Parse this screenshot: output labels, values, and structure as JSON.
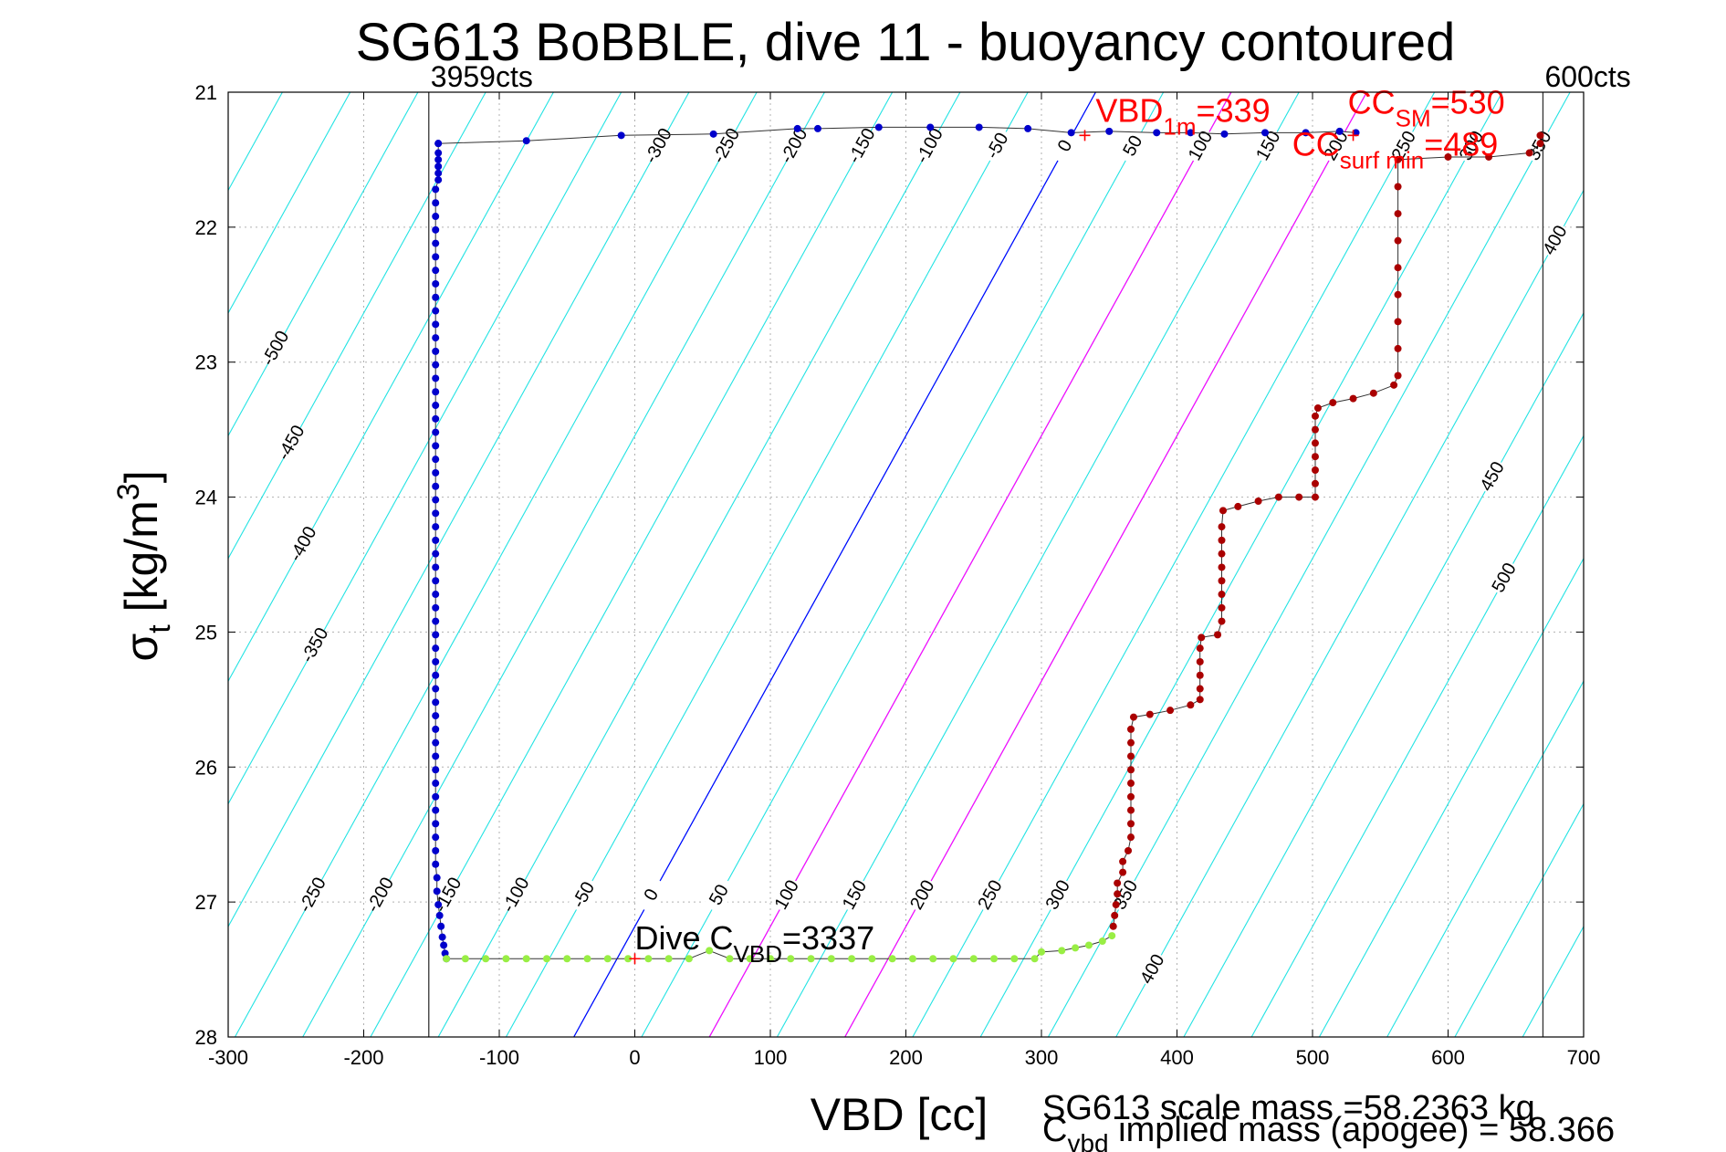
{
  "chart_data": {
    "type": "scatter",
    "title": "SG613 BoBBLE, dive 11 - buoyancy contoured",
    "xlabel": "VBD [cc]",
    "ylabel": {
      "base": "σ",
      "sub": "t",
      "rest": " [kg/m",
      "sup": "3",
      "close": "]"
    },
    "xlim": [
      -300,
      700
    ],
    "ylim": [
      21,
      28
    ],
    "y_reversed": true,
    "grid": true,
    "xticks": [
      -300,
      -200,
      -100,
      0,
      100,
      200,
      300,
      400,
      500,
      600,
      700
    ],
    "yticks": [
      21,
      22,
      23,
      24,
      25,
      26,
      27,
      28
    ],
    "contour_levels_cyan": [
      -500,
      -450,
      -400,
      -350,
      -300,
      -250,
      -200,
      -150,
      -100,
      -50,
      0,
      50,
      100,
      150,
      200,
      250,
      300,
      350,
      400,
      450,
      500
    ],
    "contour_intercepts": {
      "at_sigma_28": -45,
      "at_sigma_21": 340
    },
    "contour_spacing_cc": 50,
    "special_lines": [
      {
        "name": "VBD_1m",
        "x28": -45,
        "x21": 340,
        "color": "#0000ff"
      },
      {
        "name": "CC_surfmin",
        "x28": 55,
        "x21": 440,
        "color": "#ff00ff"
      },
      {
        "name": "CC_SM",
        "x28": 155,
        "x21": 540,
        "color": "#ff00ff"
      }
    ],
    "contour_label_rows": [
      {
        "sigma": 21.4,
        "levels": [
          -300,
          -250,
          -200,
          -150,
          -100,
          -50,
          0,
          50,
          100,
          150,
          200,
          250,
          300,
          350
        ]
      },
      {
        "sigma": 26.95,
        "levels": [
          -250,
          -200,
          -150,
          -100,
          -50,
          0,
          50,
          100,
          150,
          200,
          250,
          300,
          350
        ]
      }
    ],
    "contour_label_extra": [
      {
        "level": -500,
        "sigma": 22.9
      },
      {
        "level": -450,
        "sigma": 23.6
      },
      {
        "level": -400,
        "sigma": 24.35
      },
      {
        "level": -350,
        "sigma": 25.1
      },
      {
        "level": 400,
        "sigma": 22.1
      },
      {
        "level": 400,
        "sigma": 27.5
      },
      {
        "level": 450,
        "sigma": 23.85
      },
      {
        "level": 500,
        "sigma": 24.6
      }
    ],
    "vertical_lines": [
      {
        "x": -152,
        "label": "3959cts"
      },
      {
        "x": 670,
        "label": "600cts"
      }
    ],
    "series": [
      {
        "name": "dive",
        "color": "#0000cc",
        "points": [
          [
            -145,
            21.38
          ],
          [
            -145,
            21.45
          ],
          [
            -145,
            21.5
          ],
          [
            -145,
            21.55
          ],
          [
            -145,
            21.6
          ],
          [
            -145,
            21.65
          ],
          [
            -147,
            21.72
          ],
          [
            -147,
            21.82
          ],
          [
            -147,
            21.92
          ],
          [
            -147,
            22.02
          ],
          [
            -147,
            22.12
          ],
          [
            -147,
            22.22
          ],
          [
            -147,
            22.32
          ],
          [
            -147,
            22.42
          ],
          [
            -147,
            22.52
          ],
          [
            -147,
            22.62
          ],
          [
            -147,
            22.72
          ],
          [
            -147,
            22.82
          ],
          [
            -147,
            22.92
          ],
          [
            -147,
            23.02
          ],
          [
            -147,
            23.12
          ],
          [
            -147,
            23.22
          ],
          [
            -147,
            23.32
          ],
          [
            -147,
            23.42
          ],
          [
            -147,
            23.52
          ],
          [
            -147,
            23.62
          ],
          [
            -147,
            23.72
          ],
          [
            -147,
            23.82
          ],
          [
            -147,
            23.92
          ],
          [
            -147,
            24.02
          ],
          [
            -147,
            24.12
          ],
          [
            -147,
            24.22
          ],
          [
            -147,
            24.32
          ],
          [
            -147,
            24.42
          ],
          [
            -147,
            24.52
          ],
          [
            -147,
            24.62
          ],
          [
            -147,
            24.72
          ],
          [
            -147,
            24.82
          ],
          [
            -147,
            24.92
          ],
          [
            -147,
            25.02
          ],
          [
            -147,
            25.12
          ],
          [
            -147,
            25.22
          ],
          [
            -147,
            25.32
          ],
          [
            -147,
            25.42
          ],
          [
            -147,
            25.52
          ],
          [
            -147,
            25.62
          ],
          [
            -147,
            25.72
          ],
          [
            -147,
            25.82
          ],
          [
            -147,
            25.92
          ],
          [
            -147,
            26.02
          ],
          [
            -147,
            26.12
          ],
          [
            -147,
            26.22
          ],
          [
            -147,
            26.32
          ],
          [
            -147,
            26.42
          ],
          [
            -147,
            26.52
          ],
          [
            -147,
            26.62
          ],
          [
            -147,
            26.72
          ],
          [
            -146,
            26.82
          ],
          [
            -146,
            26.92
          ],
          [
            -145,
            27.02
          ],
          [
            -144,
            27.1
          ],
          [
            -143,
            27.18
          ],
          [
            -142,
            27.26
          ],
          [
            -141,
            27.32
          ],
          [
            -140,
            27.38
          ],
          [
            -139,
            27.42
          ]
        ]
      },
      {
        "name": "bottom",
        "color": "#99ee44",
        "points": [
          [
            -139,
            27.42
          ],
          [
            -125,
            27.42
          ],
          [
            -110,
            27.42
          ],
          [
            -95,
            27.42
          ],
          [
            -80,
            27.42
          ],
          [
            -65,
            27.42
          ],
          [
            -50,
            27.42
          ],
          [
            -35,
            27.42
          ],
          [
            -20,
            27.42
          ],
          [
            -5,
            27.42
          ],
          [
            10,
            27.42
          ],
          [
            25,
            27.42
          ],
          [
            40,
            27.42
          ],
          [
            55,
            27.36
          ],
          [
            70,
            27.42
          ],
          [
            85,
            27.42
          ],
          [
            100,
            27.42
          ],
          [
            115,
            27.42
          ],
          [
            130,
            27.42
          ],
          [
            145,
            27.42
          ],
          [
            160,
            27.42
          ],
          [
            175,
            27.42
          ],
          [
            190,
            27.42
          ],
          [
            205,
            27.42
          ],
          [
            220,
            27.42
          ],
          [
            235,
            27.42
          ],
          [
            250,
            27.42
          ],
          [
            265,
            27.42
          ],
          [
            280,
            27.42
          ],
          [
            295,
            27.42
          ],
          [
            300,
            27.37
          ],
          [
            315,
            27.36
          ],
          [
            325,
            27.34
          ],
          [
            335,
            27.32
          ],
          [
            345,
            27.29
          ],
          [
            352,
            27.25
          ]
        ]
      },
      {
        "name": "climb",
        "color": "#aa0000",
        "points": [
          [
            353,
            27.18
          ],
          [
            354,
            27.1
          ],
          [
            355,
            27.02
          ],
          [
            356,
            26.94
          ],
          [
            356,
            26.86
          ],
          [
            360,
            26.78
          ],
          [
            360,
            26.7
          ],
          [
            364,
            26.62
          ],
          [
            366,
            26.52
          ],
          [
            366,
            26.42
          ],
          [
            366,
            26.32
          ],
          [
            366,
            26.22
          ],
          [
            366,
            26.12
          ],
          [
            366,
            26.02
          ],
          [
            366,
            25.92
          ],
          [
            366,
            25.82
          ],
          [
            366,
            25.72
          ],
          [
            368,
            25.63
          ],
          [
            380,
            25.61
          ],
          [
            395,
            25.58
          ],
          [
            410,
            25.54
          ],
          [
            417,
            25.5
          ],
          [
            417,
            25.42
          ],
          [
            417,
            25.32
          ],
          [
            417,
            25.22
          ],
          [
            417,
            25.12
          ],
          [
            418,
            25.04
          ],
          [
            430,
            25.02
          ],
          [
            433,
            24.92
          ],
          [
            433,
            24.82
          ],
          [
            433,
            24.72
          ],
          [
            433,
            24.62
          ],
          [
            433,
            24.52
          ],
          [
            433,
            24.42
          ],
          [
            433,
            24.32
          ],
          [
            433,
            24.22
          ],
          [
            434,
            24.1
          ],
          [
            445,
            24.07
          ],
          [
            460,
            24.03
          ],
          [
            475,
            24.0
          ],
          [
            490,
            24.0
          ],
          [
            502,
            24.0
          ],
          [
            502,
            23.9
          ],
          [
            502,
            23.8
          ],
          [
            502,
            23.7
          ],
          [
            502,
            23.6
          ],
          [
            502,
            23.5
          ],
          [
            502,
            23.4
          ],
          [
            504,
            23.34
          ],
          [
            515,
            23.3
          ],
          [
            530,
            23.27
          ],
          [
            545,
            23.23
          ],
          [
            560,
            23.17
          ],
          [
            563,
            23.1
          ],
          [
            563,
            22.9
          ],
          [
            563,
            22.7
          ],
          [
            563,
            22.5
          ],
          [
            563,
            22.3
          ],
          [
            563,
            22.1
          ],
          [
            563,
            21.9
          ],
          [
            563,
            21.7
          ],
          [
            563,
            21.5
          ],
          [
            600,
            21.48
          ],
          [
            630,
            21.48
          ],
          [
            660,
            21.45
          ],
          [
            668,
            21.38
          ],
          [
            668,
            21.32
          ]
        ]
      },
      {
        "name": "surface",
        "color": "#0000cc",
        "points": [
          [
            -145,
            21.38
          ],
          [
            -80,
            21.36
          ],
          [
            -10,
            21.32
          ],
          [
            58,
            21.31
          ],
          [
            120,
            21.27
          ],
          [
            135,
            21.27
          ],
          [
            180,
            21.26
          ],
          [
            218,
            21.26
          ],
          [
            254,
            21.26
          ],
          [
            290,
            21.27
          ],
          [
            322,
            21.3
          ],
          [
            350,
            21.29
          ],
          [
            385,
            21.3
          ],
          [
            410,
            21.3
          ],
          [
            435,
            21.31
          ],
          [
            465,
            21.3
          ],
          [
            495,
            21.3
          ],
          [
            520,
            21.29
          ],
          [
            532,
            21.3
          ]
        ]
      }
    ],
    "annotations": [
      {
        "parts": [
          {
            "t": "VBD"
          },
          {
            "t": "1m",
            "sub": true
          },
          {
            "t": "=339"
          }
        ],
        "x": 340,
        "sigma": 21.22,
        "color": "#ff0000"
      },
      {
        "parts": [
          {
            "t": "CC"
          },
          {
            "t": "SM",
            "sub": true
          },
          {
            "t": "=530"
          }
        ],
        "x": 526,
        "sigma": 21.16,
        "color": "#ff0000"
      },
      {
        "parts": [
          {
            "t": "CC"
          },
          {
            "t": "surf min",
            "sub": true
          },
          {
            "t": "=489"
          }
        ],
        "x": 485,
        "sigma": 21.47,
        "color": "#ff0000"
      },
      {
        "parts": [
          {
            "t": "Dive C"
          },
          {
            "t": "VBD",
            "sub": true
          },
          {
            "t": "=3337"
          }
        ],
        "x": 0,
        "sigma": 27.35,
        "color": "#000000"
      }
    ],
    "markers": [
      {
        "x": 332,
        "sigma": 21.32,
        "color": "#ff0000"
      },
      {
        "x": 530,
        "sigma": 21.32,
        "color": "#ff0000"
      },
      {
        "x": 0,
        "sigma": 27.42,
        "color": "#ff0000"
      }
    ],
    "footer": {
      "scale_mass": "SG613 scale mass =58.2363 kg",
      "implied_mass": {
        "base": "C",
        "sub": "vbd",
        "rest": " implied mass (apogee) = 58.366"
      }
    }
  }
}
